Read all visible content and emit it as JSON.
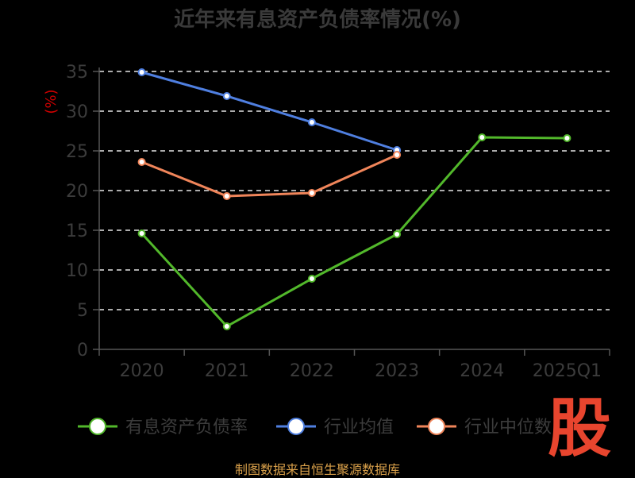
{
  "title": "近年来有息资产负债率情况(%)",
  "source": "制图数据来自恒生聚源数据库",
  "watermark": "股",
  "chart_data": {
    "type": "line",
    "title": "近年来有息资产负债率情况(%)",
    "ylabel": "(%)",
    "categories": [
      "2020",
      "2021",
      "2022",
      "2023",
      "2024",
      "2025Q1"
    ],
    "ylim": [
      0,
      35
    ],
    "yticks": [
      0,
      5,
      10,
      15,
      20,
      25,
      30,
      35
    ],
    "grid": true,
    "legend_placement": "bottom",
    "series": [
      {
        "name": "有息资产负债率",
        "color": "#52b82b",
        "values": [
          14.6,
          2.9,
          8.9,
          14.5,
          26.7,
          26.6
        ]
      },
      {
        "name": "行业均值",
        "color": "#4f7fe0",
        "values": [
          34.9,
          31.9,
          28.6,
          25.1,
          null,
          null
        ]
      },
      {
        "name": "行业中位数",
        "color": "#f0855a",
        "values": [
          23.6,
          19.3,
          19.7,
          24.5,
          null,
          null
        ]
      }
    ]
  }
}
